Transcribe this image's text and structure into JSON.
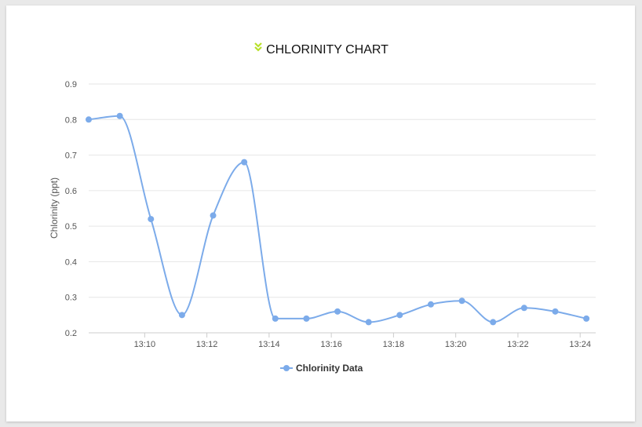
{
  "colors": {
    "series": "#7cabea",
    "accent_icon": "#b8e02a",
    "grid": "#e6e6e6"
  },
  "header": {
    "icon": "double-chevron-down-icon",
    "title": "CHLORINITY CHART"
  },
  "chart_data": {
    "type": "line",
    "title": "CHLORINITY CHART",
    "xlabel": "",
    "ylabel": "Chlorinity (ppt)",
    "ylim": [
      0.2,
      0.9
    ],
    "yticks": [
      "0.2",
      "0.3",
      "0.4",
      "0.5",
      "0.6",
      "0.7",
      "0.8",
      "0.9"
    ],
    "xlim": [
      "13:08:12",
      "13:24:30"
    ],
    "xticks": [
      "13:10",
      "13:12",
      "13:14",
      "13:16",
      "13:18",
      "13:20",
      "13:22",
      "13:24"
    ],
    "grid": true,
    "legend_position": "bottom-center",
    "series": [
      {
        "name": "Chlorinity Data",
        "x": [
          "13:08:12",
          "13:09:12",
          "13:10:12",
          "13:11:12",
          "13:12:12",
          "13:13:12",
          "13:14:12",
          "13:15:12",
          "13:16:12",
          "13:17:12",
          "13:18:12",
          "13:19:12",
          "13:20:12",
          "13:21:12",
          "13:22:12",
          "13:23:12",
          "13:24:12"
        ],
        "values": [
          0.8,
          0.81,
          0.52,
          0.25,
          0.53,
          0.68,
          0.24,
          0.24,
          0.26,
          0.23,
          0.25,
          0.28,
          0.29,
          0.23,
          0.27,
          0.26,
          0.24
        ]
      }
    ]
  }
}
